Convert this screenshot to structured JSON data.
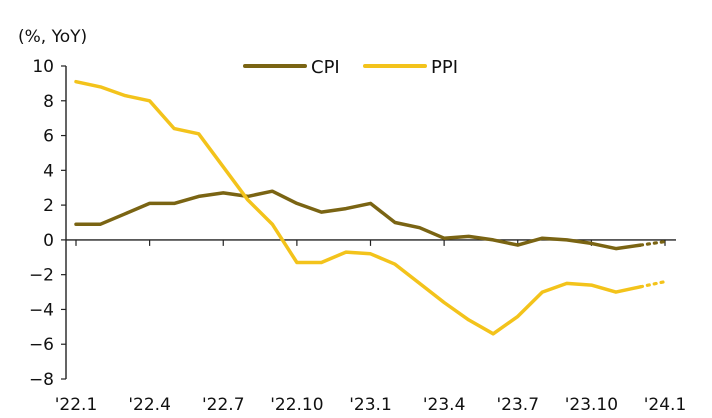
{
  "chart_data": {
    "type": "line",
    "y_unit_label": "(%, YoY)",
    "ylim": [
      -8,
      10
    ],
    "y_ticks": [
      10,
      8,
      6,
      4,
      2,
      0,
      -2,
      -4,
      -6,
      -8
    ],
    "y_tick_labels": [
      "10",
      "8",
      "6",
      "4",
      "2",
      "0",
      "−2",
      "−4",
      "−6",
      "−8"
    ],
    "x": [
      "2022-01",
      "2022-02",
      "2022-03",
      "2022-04",
      "2022-05",
      "2022-06",
      "2022-07",
      "2022-08",
      "2022-09",
      "2022-10",
      "2022-11",
      "2022-12",
      "2023-01",
      "2023-02",
      "2023-03",
      "2023-04",
      "2023-05",
      "2023-06",
      "2023-07",
      "2023-08",
      "2023-09",
      "2023-10",
      "2023-11",
      "2023-12",
      "2024-01"
    ],
    "x_tick_labels": [
      "'22.1",
      "'22.4",
      "'22.7",
      "'22.10",
      "'23.1",
      "'23.4",
      "'23.7",
      "'23.10",
      "'24.1"
    ],
    "x_tick_positions": [
      "2022-01",
      "2022-04",
      "2022-07",
      "2022-10",
      "2023-01",
      "2023-04",
      "2023-07",
      "2023-10",
      "2024-01"
    ],
    "series": [
      {
        "name": "CPI",
        "color": "#7A6413",
        "values": [
          0.9,
          0.9,
          1.5,
          2.1,
          2.1,
          2.5,
          2.7,
          2.5,
          2.8,
          2.1,
          1.6,
          1.8,
          2.1,
          1.0,
          0.7,
          0.1,
          0.2,
          0.0,
          -0.3,
          0.1,
          0.0,
          -0.2,
          -0.5,
          -0.3,
          -0.1
        ],
        "projected_from_index": 23
      },
      {
        "name": "PPI",
        "color": "#F3C31B",
        "values": [
          9.1,
          8.8,
          8.3,
          8.0,
          6.4,
          6.1,
          4.2,
          2.3,
          0.9,
          -1.3,
          -1.3,
          -0.7,
          -0.8,
          -1.4,
          -2.5,
          -3.6,
          -4.6,
          -5.4,
          -4.4,
          -3.0,
          -2.5,
          -2.6,
          -3.0,
          -2.7,
          -2.4
        ],
        "projected_from_index": 23
      }
    ],
    "legend": [
      "CPI",
      "PPI"
    ],
    "legend_position": "top-center",
    "grid": false
  }
}
